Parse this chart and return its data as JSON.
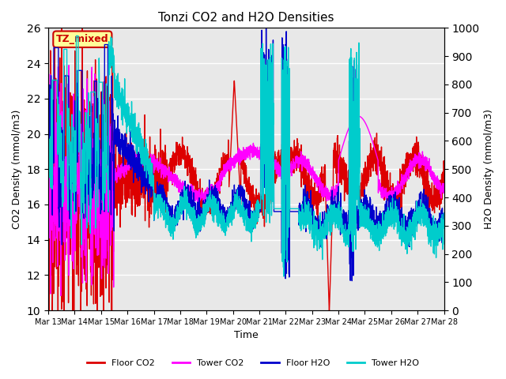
{
  "title": "Tonzi CO2 and H2O Densities",
  "xlabel": "Time",
  "ylabel_left": "CO2 Density (mmol/m3)",
  "ylabel_right": "H2O Density (mmol/m3)",
  "annotation_text": "TZ_mixed",
  "annotation_color": "#cc0000",
  "annotation_bg": "#ffff99",
  "ylim_left": [
    10,
    26
  ],
  "ylim_right": [
    0,
    1000
  ],
  "yticks_left": [
    10,
    12,
    14,
    16,
    18,
    20,
    22,
    24,
    26
  ],
  "yticks_right": [
    0,
    100,
    200,
    300,
    400,
    500,
    600,
    700,
    800,
    900,
    1000
  ],
  "xtick_labels": [
    "Mar 13",
    "Mar 14",
    "Mar 15",
    "Mar 16",
    "Mar 17",
    "Mar 18",
    "Mar 19",
    "Mar 20",
    "Mar 21",
    "Mar 22",
    "Mar 23",
    "Mar 24",
    "Mar 25",
    "Mar 26",
    "Mar 27",
    "Mar 28"
  ],
  "colors": {
    "floor_co2": "#dd0000",
    "tower_co2": "#ff00ff",
    "floor_h2o": "#0000cc",
    "tower_h2o": "#00cccc"
  },
  "legend_labels": [
    "Floor CO2",
    "Tower CO2",
    "Floor H2O",
    "Tower H2O"
  ],
  "line_width": 1.0,
  "background_color": "#e8e8e8",
  "grid_color": "#ffffff",
  "figsize": [
    6.4,
    4.8
  ],
  "dpi": 100
}
